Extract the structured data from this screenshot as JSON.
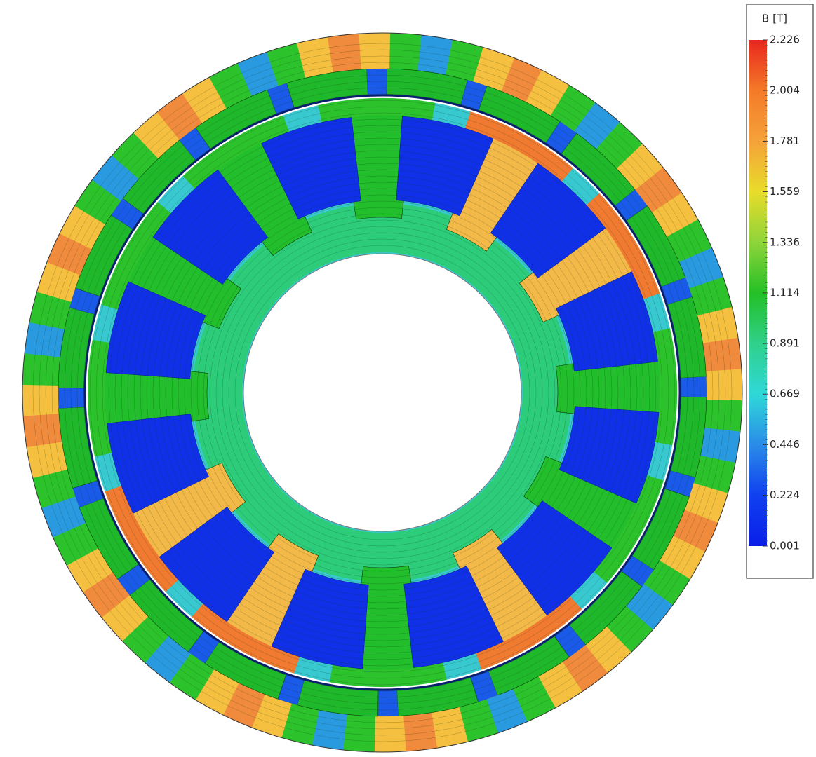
{
  "legend": {
    "title": "B [T]",
    "ticks": [
      2.226,
      2.004,
      1.781,
      1.559,
      1.336,
      1.114,
      0.891,
      0.669,
      0.446,
      0.224,
      0.001
    ]
  }
}
